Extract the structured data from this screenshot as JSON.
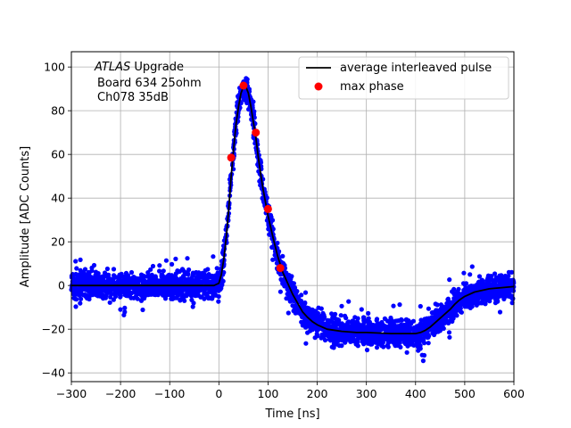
{
  "chart_data": {
    "type": "scatter",
    "xlabel": "Time [ns]",
    "ylabel": "Amplitude [ADC Counts]",
    "xlim": [
      -300,
      600
    ],
    "ylim": [
      -44,
      107
    ],
    "xticks": [
      -300,
      -200,
      -100,
      0,
      100,
      200,
      300,
      400,
      500,
      600
    ],
    "yticks": [
      -40,
      -20,
      0,
      20,
      40,
      60,
      80,
      100
    ],
    "xtick_labels": [
      "−300",
      "−200",
      "−100",
      "0",
      "100",
      "200",
      "300",
      "400",
      "500",
      "600"
    ],
    "ytick_labels": [
      "−40",
      "−20",
      "0",
      "20",
      "40",
      "60",
      "80",
      "100"
    ],
    "grid": true,
    "legend_position": "top-right",
    "annotation": {
      "line1_italic": "ATLAS",
      "line1_rest": " Upgrade",
      "line2": "Board 634 25ohm",
      "line3": "Ch078 35dB"
    },
    "series": [
      {
        "name": "average interleaved pulse",
        "kind": "line",
        "color": "#000000",
        "x": [
          -300,
          -250,
          -200,
          -150,
          -100,
          -50,
          -10,
          0,
          5,
          10,
          15,
          20,
          25,
          30,
          35,
          40,
          45,
          50,
          55,
          60,
          65,
          70,
          75,
          80,
          85,
          90,
          100,
          110,
          120,
          130,
          140,
          150,
          160,
          170,
          180,
          190,
          200,
          220,
          250,
          280,
          300,
          350,
          400,
          410,
          420,
          430,
          440,
          450,
          460,
          470,
          480,
          490,
          500,
          520,
          550,
          600
        ],
        "y": [
          0,
          0,
          0,
          0,
          0,
          0,
          0,
          1,
          5,
          12,
          22,
          35,
          50,
          63,
          74,
          82,
          88,
          91,
          91,
          88,
          82,
          75,
          68,
          59,
          51,
          44,
          32,
          22,
          13,
          6,
          1,
          -4,
          -8,
          -12,
          -14.5,
          -16.5,
          -18,
          -20,
          -21,
          -21.5,
          -21.5,
          -22,
          -22,
          -21.5,
          -20.5,
          -19,
          -17,
          -15,
          -13,
          -11,
          -8.5,
          -6.5,
          -5,
          -3,
          -1.5,
          -0.5
        ]
      },
      {
        "name": "max phase",
        "kind": "markers",
        "color": "#ff0000",
        "x": [
          25,
          50,
          75,
          100,
          125
        ],
        "y": [
          58.5,
          91.5,
          70,
          35,
          8
        ]
      },
      {
        "name": "",
        "kind": "scatter-band",
        "color": "#0000ff",
        "description_halfwidth_adc": 9,
        "outlier_extent_adc": 14
      }
    ]
  }
}
